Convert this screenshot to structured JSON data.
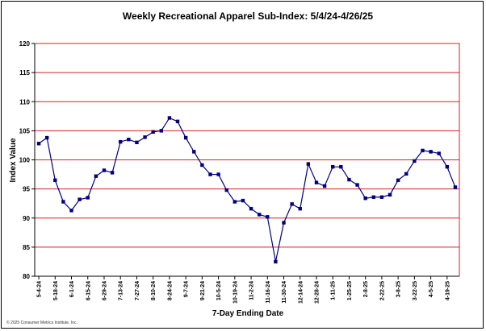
{
  "chart_data": {
    "type": "line",
    "title": "Weekly Recreational Apparel Sub-Index: 5/4/24-4/26/25",
    "xlabel": "7-Day Ending Date",
    "ylabel": "Index Value",
    "ylim": [
      80,
      120
    ],
    "yticks": [
      "80",
      "85",
      "90",
      "95",
      "100",
      "105",
      "110",
      "115",
      "120"
    ],
    "grid": true,
    "x_tick_labels": [
      "5-4-24",
      "5-18-24",
      "6-1-24",
      "6-15-24",
      "6-29-24",
      "7-13-24",
      "7-27-24",
      "8-10-24",
      "8-24-24",
      "9-7-24",
      "9-21-24",
      "10-5-24",
      "10-19-24",
      "11-2-24",
      "11-16-24",
      "11-30-24",
      "12-14-24",
      "12-28-24",
      "1-11-25",
      "1-25-25",
      "2-8-25",
      "2-22-25",
      "3-8-25",
      "3-22-25",
      "4-5-25",
      "4-19-25"
    ],
    "series": [
      {
        "color": "#000080",
        "values": [
          102.8,
          103.8,
          96.5,
          92.8,
          91.3,
          93.2,
          93.5,
          97.2,
          98.2,
          97.8,
          103.1,
          103.5,
          103.0,
          103.9,
          104.8,
          105.0,
          107.2,
          106.6,
          103.8,
          101.4,
          99.1,
          97.5,
          97.5,
          94.8,
          92.8,
          93.0,
          91.6,
          90.6,
          90.2,
          82.5,
          89.2,
          92.4,
          91.6,
          99.3,
          96.1,
          95.5,
          98.8,
          98.8,
          96.6,
          95.7,
          93.4,
          93.6,
          93.6,
          94.0,
          96.5,
          97.6,
          99.8,
          101.6,
          101.4,
          101.1,
          98.8,
          95.3
        ]
      }
    ]
  },
  "copyright": "© 2025 Consumer Metrics Institute, Inc."
}
